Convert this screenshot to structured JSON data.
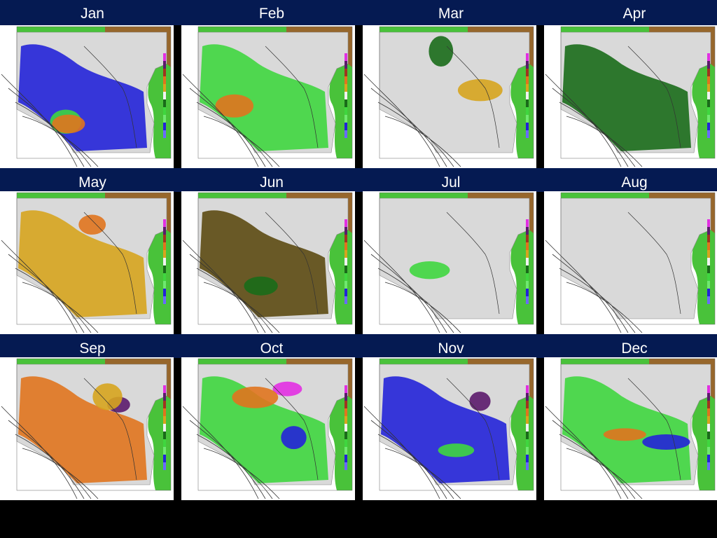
{
  "months": [
    "Jan",
    "Feb",
    "Mar",
    "Apr",
    "May",
    "Jun",
    "Jul",
    "Aug",
    "Sep",
    "Oct",
    "Nov",
    "Dec"
  ],
  "colors": {
    "title_band": "#051a52",
    "background": "#000000",
    "label_text": "#ffffff",
    "ocean_gray": "#d9d9d9",
    "land_green": "#49c23a",
    "land_brown": "#a4572a"
  },
  "panels": [
    {
      "month": "Jan",
      "dominant": "blue",
      "accents": [
        "green",
        "orange"
      ]
    },
    {
      "month": "Feb",
      "dominant": "green",
      "accents": [
        "orange"
      ]
    },
    {
      "month": "Mar",
      "dominant": "gray",
      "accents": [
        "gold",
        "darkgreen"
      ]
    },
    {
      "month": "Apr",
      "dominant": "darkgreen",
      "accents": []
    },
    {
      "month": "May",
      "dominant": "gold",
      "accents": [
        "orange"
      ]
    },
    {
      "month": "Jun",
      "dominant": "olive",
      "accents": [
        "darkgreen"
      ]
    },
    {
      "month": "Jul",
      "dominant": "gray",
      "accents": [
        "green"
      ]
    },
    {
      "month": "Aug",
      "dominant": "gray",
      "accents": []
    },
    {
      "month": "Sep",
      "dominant": "orange",
      "accents": [
        "purple",
        "gold"
      ]
    },
    {
      "month": "Oct",
      "dominant": "green",
      "accents": [
        "magenta",
        "blue",
        "orange"
      ]
    },
    {
      "month": "Nov",
      "dominant": "blue",
      "accents": [
        "green",
        "purple"
      ]
    },
    {
      "month": "Dec",
      "dominant": "green",
      "accents": [
        "orange",
        "blue"
      ]
    }
  ]
}
